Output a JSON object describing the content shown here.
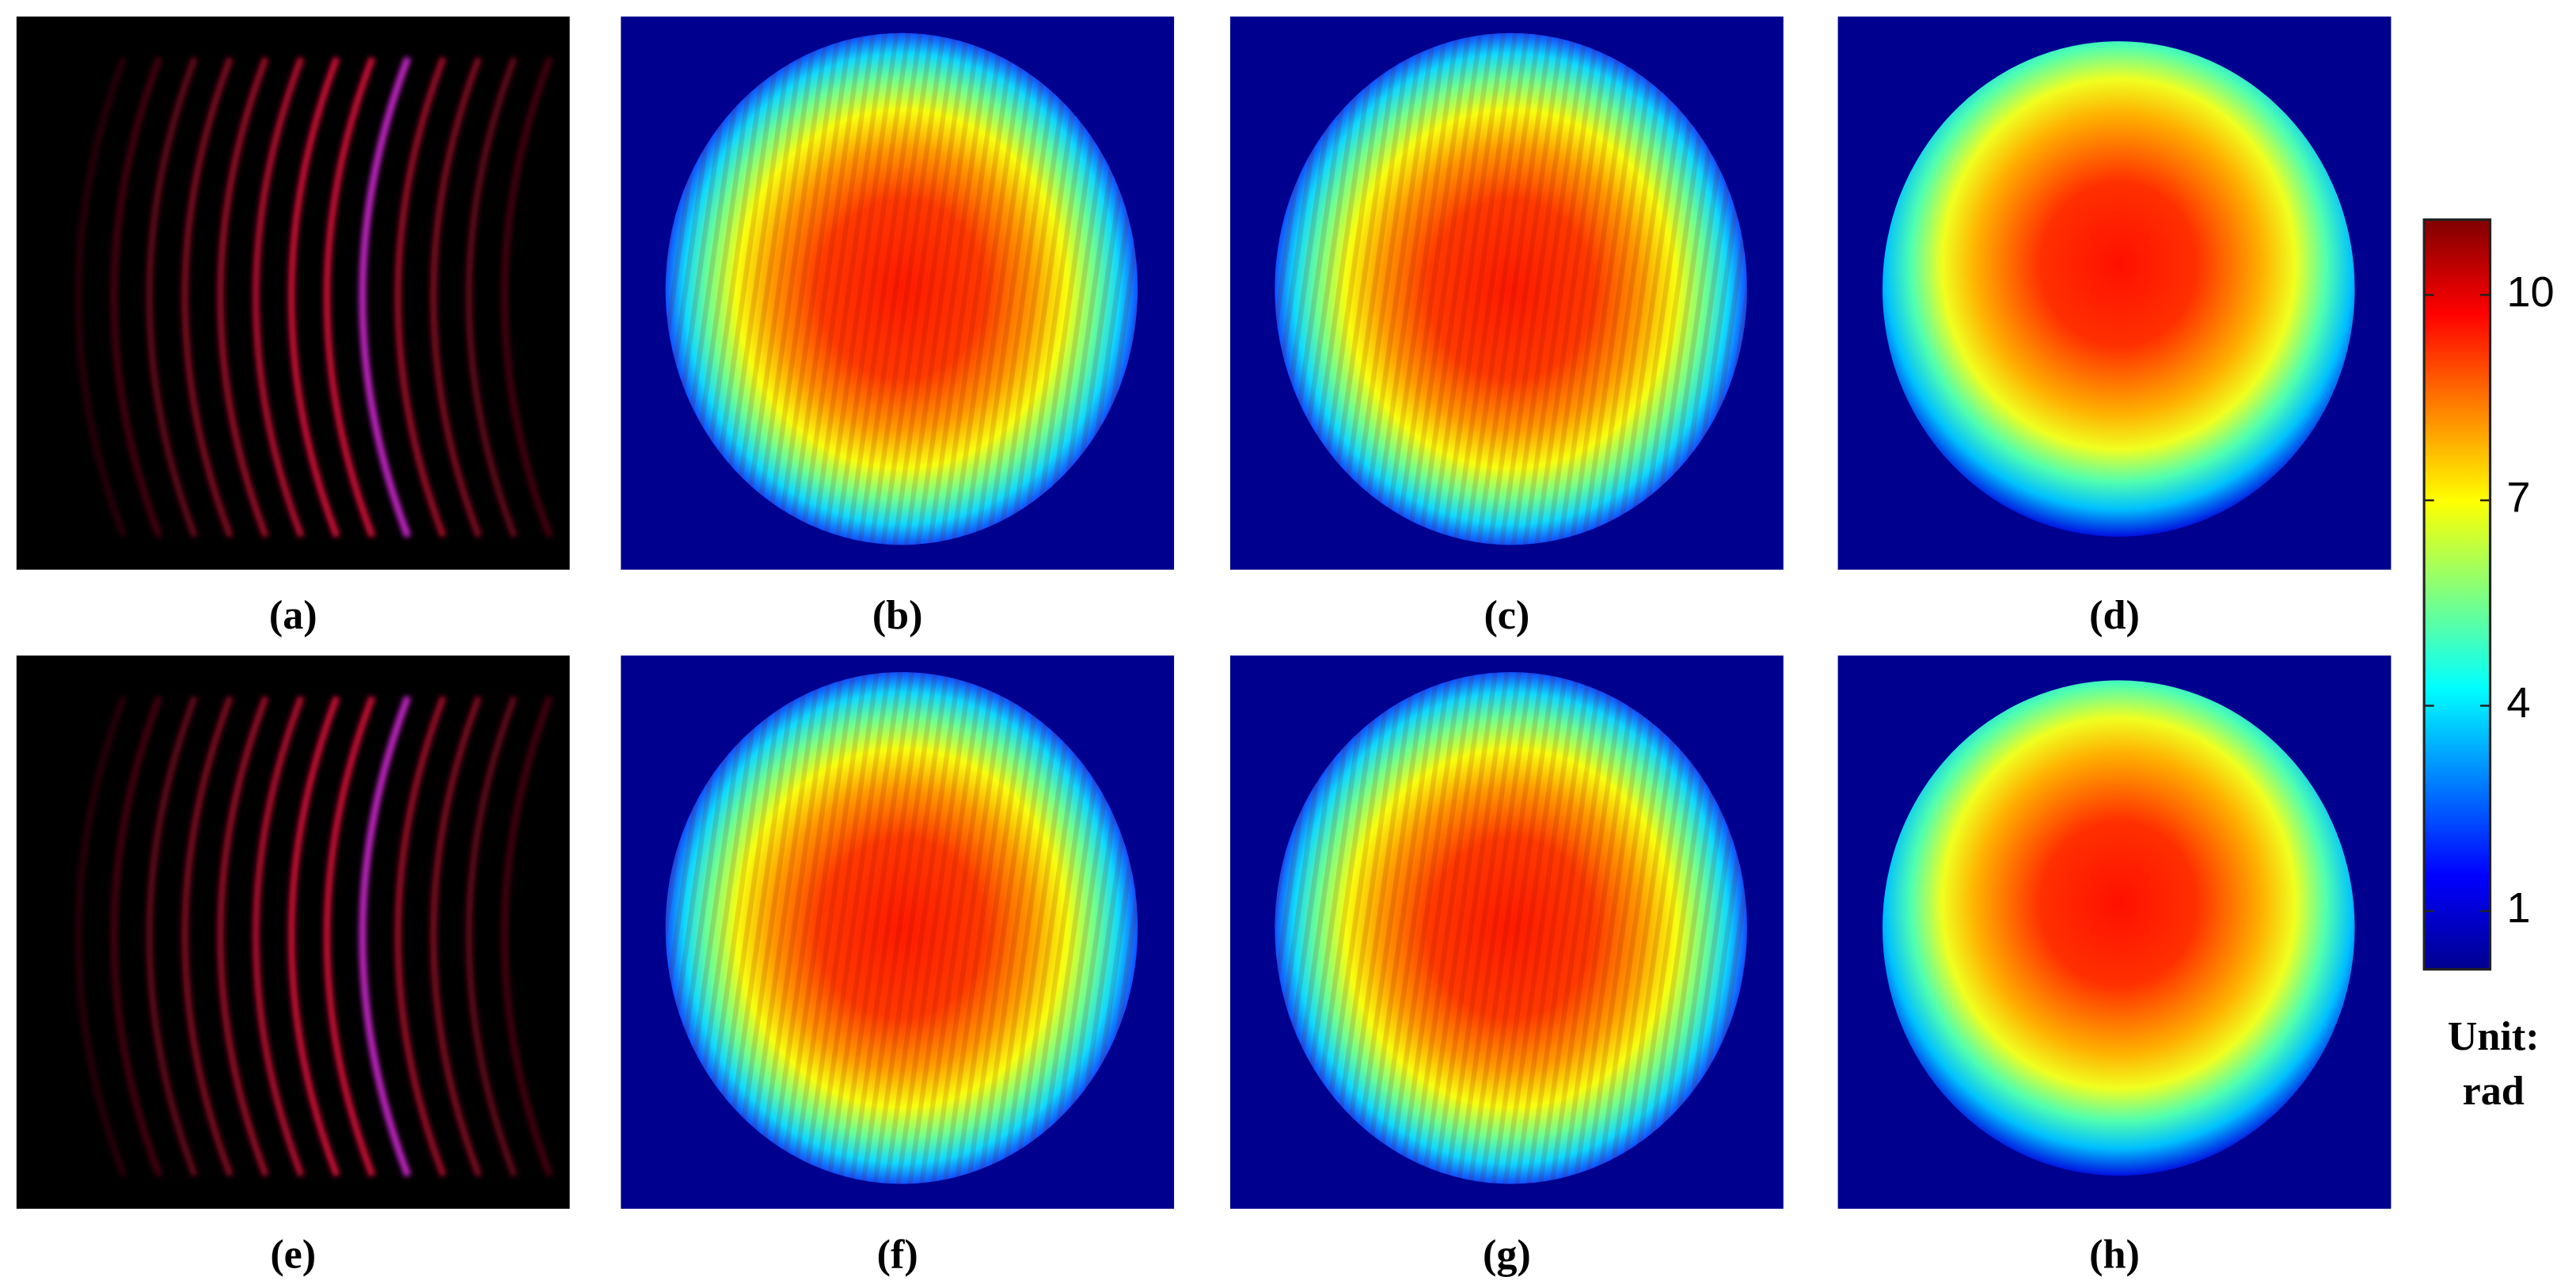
{
  "panels": [
    {
      "label": "(a)",
      "kind": "fringe"
    },
    {
      "label": "(b)",
      "kind": "wrapped"
    },
    {
      "label": "(c)",
      "kind": "wrapped"
    },
    {
      "label": "(d)",
      "kind": "smooth"
    },
    {
      "label": "(e)",
      "kind": "fringe"
    },
    {
      "label": "(f)",
      "kind": "wrapped"
    },
    {
      "label": "(g)",
      "kind": "wrapped"
    },
    {
      "label": "(h)",
      "kind": "smooth"
    }
  ],
  "colorbar": {
    "lim": [
      0.15,
      11.1
    ],
    "ticks": [
      1,
      4,
      7,
      10
    ],
    "unit": [
      "Unit:",
      "rad"
    ]
  }
}
